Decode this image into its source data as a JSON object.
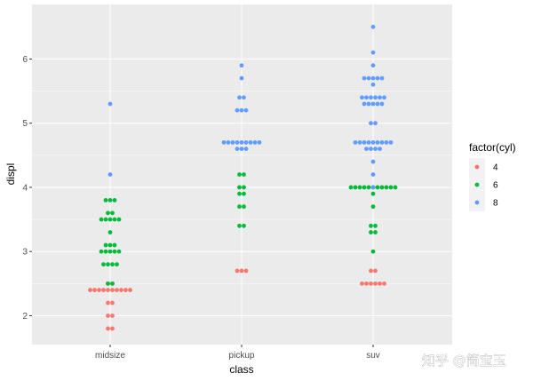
{
  "chart_data": {
    "type": "scatter",
    "subtype": "dotplot",
    "xlabel": "class",
    "ylabel": "displ",
    "categories": [
      "midsize",
      "pickup",
      "suv"
    ],
    "yticks": [
      2,
      3,
      4,
      5,
      6
    ],
    "ylim": [
      1.55,
      6.85
    ],
    "legend": {
      "title": "factor(cyl)",
      "position": "right",
      "entries": [
        {
          "label": "4",
          "color": "#F8766D"
        },
        {
          "label": "6",
          "color": "#00BA38"
        },
        {
          "label": "8",
          "color": "#619CFF"
        }
      ]
    },
    "series": [
      {
        "name": "4",
        "color": "#F8766D",
        "points": [
          {
            "category": "midsize",
            "values": [
              1.8,
              1.8,
              2.0,
              2.0,
              2.2,
              2.2,
              2.4,
              2.4,
              2.4,
              2.4,
              2.4,
              2.4,
              2.4,
              2.4,
              2.4,
              2.4,
              2.5,
              2.5
            ]
          },
          {
            "category": "pickup",
            "values": [
              2.7,
              2.7,
              2.7
            ]
          },
          {
            "category": "suv",
            "values": [
              2.5,
              2.5,
              2.5,
              2.5,
              2.5,
              2.5,
              2.7,
              2.7
            ]
          }
        ]
      },
      {
        "name": "6",
        "color": "#00BA38",
        "points": [
          {
            "category": "midsize",
            "values": [
              2.5,
              2.5,
              2.8,
              2.8,
              2.8,
              2.8,
              3.0,
              3.0,
              3.0,
              3.0,
              3.0,
              3.1,
              3.1,
              3.1,
              3.3,
              3.5,
              3.5,
              3.5,
              3.5,
              3.5,
              3.6,
              3.6,
              3.8,
              3.8,
              3.8
            ]
          },
          {
            "category": "pickup",
            "values": [
              3.4,
              3.4,
              3.7,
              3.7,
              3.9,
              3.9,
              4.0,
              4.0,
              4.2,
              4.2
            ]
          },
          {
            "category": "suv",
            "values": [
              3.0,
              3.3,
              3.3,
              3.4,
              3.4,
              3.7,
              3.9,
              4.0,
              4.0,
              4.0,
              4.0,
              4.0,
              4.0,
              4.0,
              4.0,
              4.0,
              4.0,
              4.0
            ]
          }
        ]
      },
      {
        "name": "8",
        "color": "#619CFF",
        "points": [
          {
            "category": "midsize",
            "values": [
              4.2,
              5.3
            ]
          },
          {
            "category": "pickup",
            "values": [
              4.6,
              4.6,
              4.6,
              4.7,
              4.7,
              4.7,
              4.7,
              4.7,
              4.7,
              4.7,
              4.7,
              4.7,
              5.2,
              5.2,
              5.2,
              5.4,
              5.4,
              5.7,
              5.9
            ]
          },
          {
            "category": "suv",
            "values": [
              4.0,
              4.2,
              4.4,
              4.6,
              4.6,
              4.6,
              4.6,
              4.7,
              4.7,
              4.7,
              4.7,
              4.7,
              4.7,
              4.7,
              4.7,
              4.7,
              5.0,
              5.0,
              5.3,
              5.3,
              5.3,
              5.3,
              5.3,
              5.4,
              5.4,
              5.4,
              5.4,
              5.4,
              5.4,
              5.6,
              5.7,
              5.7,
              5.7,
              5.7,
              5.7,
              5.9,
              6.1,
              6.5
            ]
          }
        ]
      }
    ]
  },
  "watermark": "知乎 @简宝玉",
  "style": {
    "panel_bg": "#EBEBEB",
    "grid_major": "#FFFFFF"
  }
}
